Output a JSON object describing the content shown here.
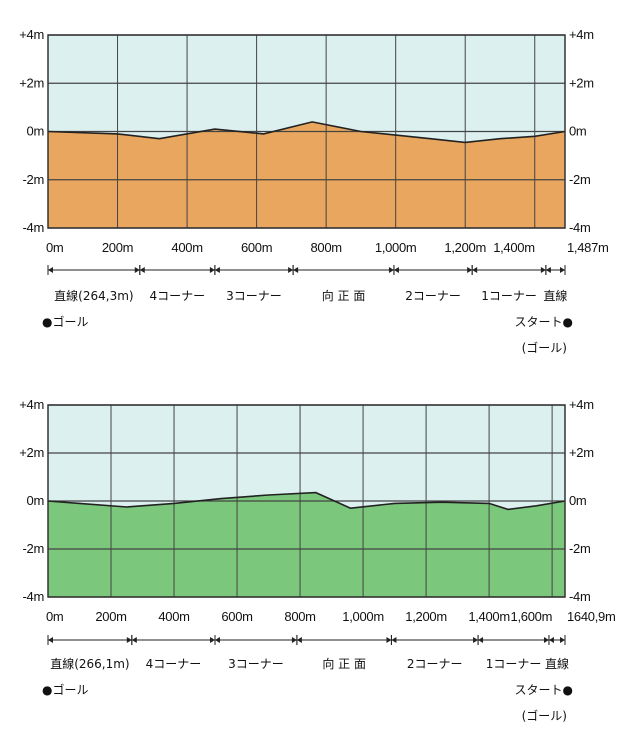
{
  "chart_data": [
    {
      "type": "area",
      "title": "",
      "xlabel": "",
      "ylabel": "",
      "x_range": [
        0,
        1487
      ],
      "ylim": [
        -4,
        4
      ],
      "y_ticks": [
        4,
        2,
        0,
        -2,
        -4
      ],
      "y_tick_labels": [
        "+4m",
        "+2m",
        "0m",
        "-2m",
        "-4m"
      ],
      "x_ticks": [
        0,
        200,
        400,
        600,
        800,
        1000,
        1200,
        1400,
        1487
      ],
      "x_tick_labels": [
        "0m",
        "200m",
        "400m",
        "600m",
        "800m",
        "1,000m",
        "1,200m",
        "1,400m",
        "1,487m"
      ],
      "grid_x": [
        200,
        400,
        600,
        800,
        1000,
        1200,
        1400,
        1487
      ],
      "x": [
        0,
        200,
        320,
        480,
        620,
        760,
        900,
        1000,
        1100,
        1200,
        1300,
        1400,
        1487
      ],
      "y": [
        0,
        -0.1,
        -0.3,
        0.1,
        -0.1,
        0.4,
        0,
        -0.15,
        -0.3,
        -0.45,
        -0.3,
        -0.2,
        0
      ],
      "fill_color": "#e8a65e",
      "sky_color": "#dcf0ef",
      "sections": [
        {
          "label": "直線(264,3m)",
          "from": 0,
          "to": 264
        },
        {
          "label": "4コーナー",
          "from": 264,
          "to": 480
        },
        {
          "label": "3コーナー",
          "from": 480,
          "to": 705
        },
        {
          "label": "向 正 面",
          "from": 705,
          "to": 995
        },
        {
          "label": "2コーナー",
          "from": 995,
          "to": 1220
        },
        {
          "label": "1コーナー",
          "from": 1220,
          "to": 1432
        },
        {
          "label": "直線",
          "from": 1432,
          "to": 1487
        }
      ],
      "goal_label": "●ゴール",
      "start_label": "スタート●",
      "start_sub_label": "(ゴール)"
    },
    {
      "type": "area",
      "title": "",
      "xlabel": "",
      "ylabel": "",
      "x_range": [
        0,
        1640.9
      ],
      "ylim": [
        -4,
        4
      ],
      "y_ticks": [
        4,
        2,
        0,
        -2,
        -4
      ],
      "y_tick_labels": [
        "+4m",
        "+2m",
        "0m",
        "-2m",
        "-4m"
      ],
      "x_ticks": [
        0,
        200,
        400,
        600,
        800,
        1000,
        1200,
        1400,
        1600,
        1640.9
      ],
      "x_tick_labels": [
        "0m",
        "200m",
        "400m",
        "600m",
        "800m",
        "1,000m",
        "1,200m",
        "1,400m",
        "1,600m",
        "1640,9m"
      ],
      "grid_x": [
        200,
        400,
        600,
        800,
        1000,
        1200,
        1400,
        1600,
        1640.9
      ],
      "x": [
        0,
        100,
        250,
        400,
        550,
        700,
        850,
        960,
        1100,
        1250,
        1400,
        1460,
        1550,
        1640.9
      ],
      "y": [
        0,
        -0.1,
        -0.25,
        -0.1,
        0.1,
        0.25,
        0.35,
        -0.3,
        -0.1,
        -0.05,
        -0.1,
        -0.35,
        -0.2,
        0
      ],
      "fill_color": "#7bc77b",
      "sky_color": "#dcf0ef",
      "sections": [
        {
          "label": "直線(266,1m)",
          "from": 0,
          "to": 266
        },
        {
          "label": "4コーナー",
          "from": 266,
          "to": 530
        },
        {
          "label": "3コーナー",
          "from": 530,
          "to": 790
        },
        {
          "label": "向 正 面",
          "from": 790,
          "to": 1090
        },
        {
          "label": "2コーナー",
          "from": 1090,
          "to": 1365
        },
        {
          "label": "1コーナー",
          "from": 1365,
          "to": 1590
        },
        {
          "label": "直線",
          "from": 1590,
          "to": 1640.9
        }
      ],
      "goal_label": "●ゴール",
      "start_label": "スタート●",
      "start_sub_label": "(ゴール)"
    }
  ]
}
